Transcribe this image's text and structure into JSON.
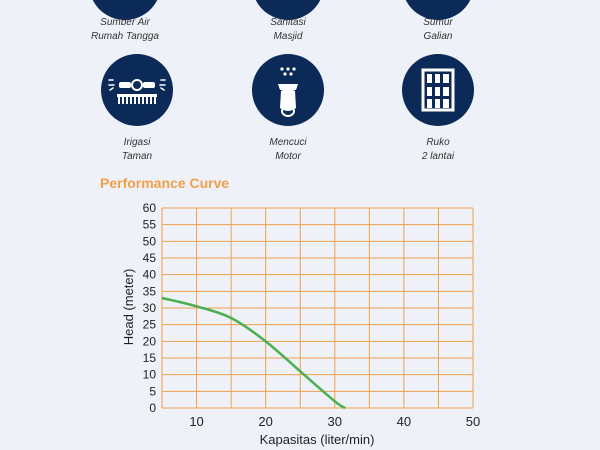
{
  "usage": [
    {
      "line1": "Sumber Air",
      "line2": "Rumah Tangga",
      "icon": "water-source-icon"
    },
    {
      "line1": "Sanitasi",
      "line2": "Masjid",
      "icon": "mosque-icon"
    },
    {
      "line1": "Sumur",
      "line2": "Galian",
      "icon": "well-icon"
    },
    {
      "line1": "Irigasi",
      "line2": "Taman",
      "icon": "sprinkler-icon"
    },
    {
      "line1": "Mencuci",
      "line2": "Motor",
      "icon": "scooter-icon"
    },
    {
      "line1": "Ruko",
      "line2": "2 lantai",
      "icon": "building-icon"
    }
  ],
  "colors": {
    "icon_bg": "#0b2a57",
    "title": "#f0a04b",
    "grid": "#f0a04b",
    "curve": "#4caf50",
    "text": "#222222"
  },
  "section": {
    "title": "Performance Curve"
  },
  "chart_data": {
    "type": "line",
    "xlabel": "Kapasitas (liter/min)",
    "ylabel": "Head (meter)",
    "xlim": [
      5,
      50
    ],
    "ylim": [
      0,
      60
    ],
    "xticks": [
      10,
      20,
      30,
      40,
      50
    ],
    "yticks": [
      0,
      5,
      10,
      15,
      20,
      25,
      30,
      35,
      40,
      45,
      50,
      55,
      60
    ],
    "grid": true,
    "series": [
      {
        "x": [
          5,
          10,
          15,
          20,
          25,
          30,
          31.5
        ],
        "y": [
          33,
          30.5,
          27,
          20,
          11,
          2,
          0
        ]
      }
    ]
  }
}
